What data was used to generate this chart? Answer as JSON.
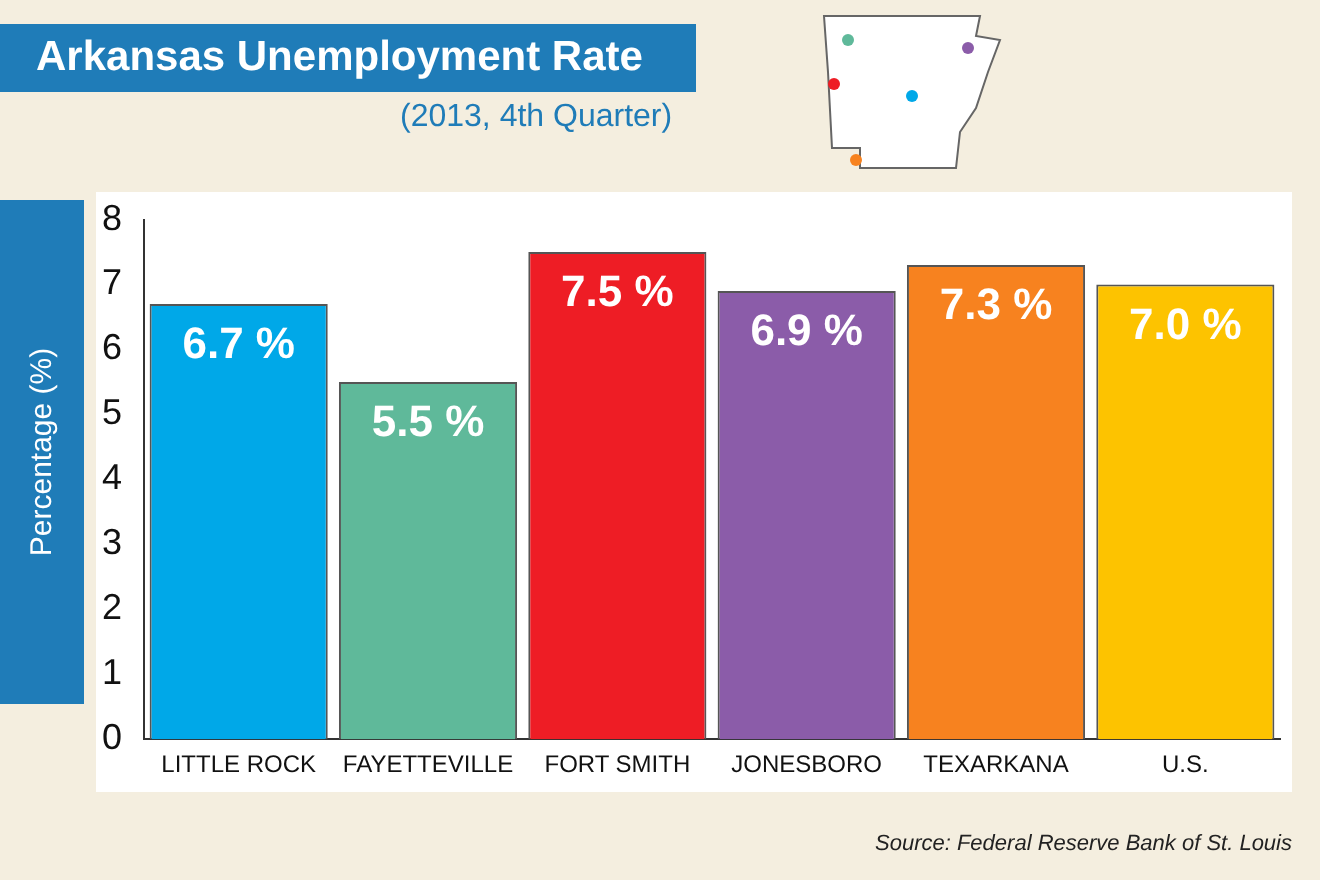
{
  "chart_data": {
    "type": "bar",
    "title": "Arkansas Unemployment Rate",
    "subtitle": "(2013, 4th Quarter)",
    "ylabel": "Percentage (%)",
    "categories": [
      "LITTLE ROCK",
      "FAYETTEVILLE",
      "FORT SMITH",
      "JONESBORO",
      "TEXARKANA",
      "U.S."
    ],
    "values": [
      6.7,
      5.5,
      7.5,
      6.9,
      7.3,
      7.0
    ],
    "colors": [
      "#00a8e8",
      "#5fb99a",
      "#ee1d25",
      "#8b5ca9",
      "#f7821f",
      "#fdc300"
    ],
    "value_labels": [
      "6.7 %",
      "5.5 %",
      "7.5 %",
      "6.9 %",
      "7.3 %",
      "7.0 %"
    ],
    "ylim": [
      0,
      8
    ],
    "yticks": [
      0,
      1,
      2,
      3,
      4,
      5,
      6,
      7,
      8
    ],
    "grid": false,
    "legend": false,
    "annotations": [
      "Source: Federal Reserve Bank of St. Louis"
    ]
  }
}
